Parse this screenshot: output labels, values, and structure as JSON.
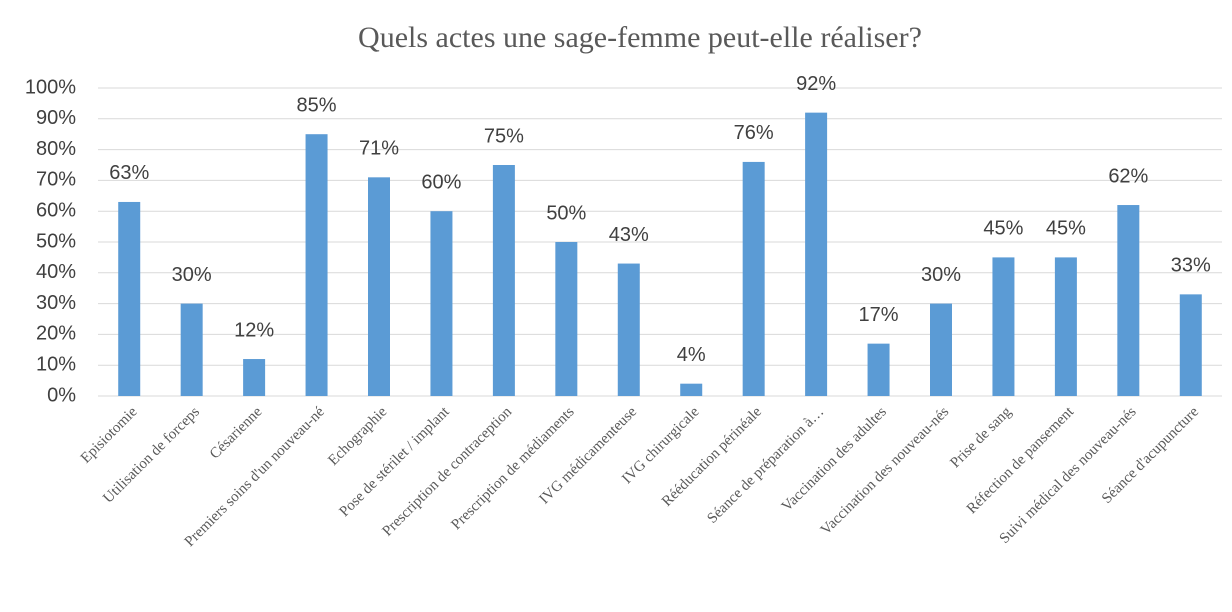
{
  "chart_data": {
    "type": "bar",
    "title": "Quels actes une sage-femme peut-elle réaliser?",
    "categories": [
      "Episiotomie",
      "Utilisation de forceps",
      "Césarienne",
      "Premiers soins d'un nouveau-né",
      "Echographie",
      "Pose de stérilet / implant",
      "Prescription de contraception",
      "Prescription de médiaments",
      "IVG médicamenteuse",
      "IVG chirurgicale",
      "Rééducation périnéale",
      "Séance de préparation à…",
      "Vaccination des adultes",
      "Vaccination des nouveau-nés",
      "Prise de sang",
      "Réfection de pansement",
      "Suivi médical des nouveau-nés",
      "Séance d'acupuncture"
    ],
    "values": [
      63,
      30,
      12,
      85,
      71,
      60,
      75,
      50,
      43,
      4,
      76,
      92,
      17,
      30,
      45,
      45,
      62,
      33
    ],
    "value_labels": [
      "63%",
      "30%",
      "12%",
      "85%",
      "71%",
      "60%",
      "75%",
      "50%",
      "43%",
      "4%",
      "76%",
      "92%",
      "17%",
      "30%",
      "45%",
      "45%",
      "62%",
      "33%"
    ],
    "color": "#5b9bd5",
    "ylim": [
      0,
      100
    ],
    "yticks": [
      {
        "value": 0,
        "label": "0%"
      },
      {
        "value": 10,
        "label": "10%"
      },
      {
        "value": 20,
        "label": "20%"
      },
      {
        "value": 30,
        "label": "30%"
      },
      {
        "value": 40,
        "label": "40%"
      },
      {
        "value": 50,
        "label": "50%"
      },
      {
        "value": 60,
        "label": "60%"
      },
      {
        "value": 70,
        "label": "70%"
      },
      {
        "value": 80,
        "label": "80%"
      },
      {
        "value": 90,
        "label": "90%"
      },
      {
        "value": 100,
        "label": "100%"
      }
    ],
    "grid": true
  }
}
